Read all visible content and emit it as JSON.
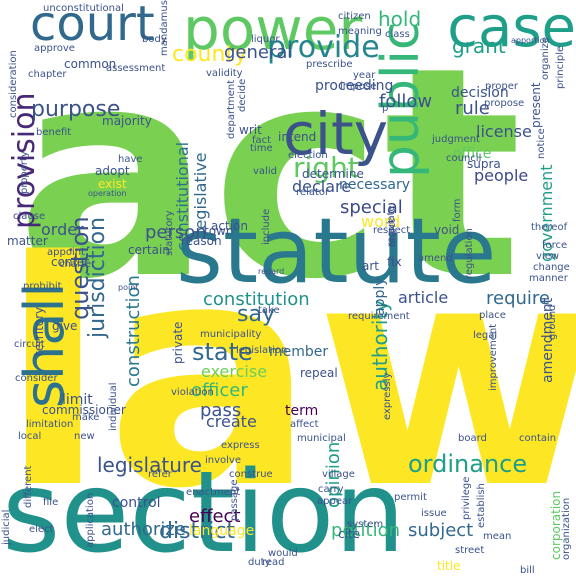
{
  "words": [
    {
      "text": "act",
      "color": "#7ad151"
    },
    {
      "text": "law",
      "color": "#fde725"
    },
    {
      "text": "section",
      "color": "#21918c"
    },
    {
      "text": "statute",
      "color": "#2a788e"
    },
    {
      "text": "power",
      "color": "#5ec962"
    },
    {
      "text": "court",
      "color": "#31688e"
    },
    {
      "text": "case",
      "color": "#1f9e89"
    },
    {
      "text": "city",
      "color": "#3b528b"
    },
    {
      "text": "shall",
      "color": "#2c728e"
    },
    {
      "text": "public",
      "color": "#35b779"
    },
    {
      "text": "provide",
      "color": "#25858e"
    },
    {
      "text": "provision",
      "color": "#482878"
    },
    {
      "text": "right",
      "color": "#5ec962"
    },
    {
      "text": "county",
      "color": "#fde725"
    },
    {
      "text": "hold",
      "color": "#35b779"
    },
    {
      "text": "general",
      "color": "#3b528b"
    },
    {
      "text": "grant",
      "color": "#1f9e89"
    },
    {
      "text": "purpose",
      "color": "#3b528b"
    },
    {
      "text": "constitutional",
      "color": "#2c728e"
    },
    {
      "text": "legislative",
      "color": "#31688e"
    },
    {
      "text": "question",
      "color": "#3b528b"
    },
    {
      "text": "jurisdiction",
      "color": "#31688e"
    },
    {
      "text": "state",
      "color": "#31688e"
    },
    {
      "text": "say",
      "color": "#31688e"
    },
    {
      "text": "ordinance",
      "color": "#1f9e89"
    },
    {
      "text": "authority",
      "color": "#1f9e89"
    },
    {
      "text": "legislature",
      "color": "#3b528b"
    },
    {
      "text": "district",
      "color": "#31688e"
    },
    {
      "text": "authorize",
      "color": "#31688e"
    },
    {
      "text": "petition",
      "color": "#35b779"
    },
    {
      "text": "subject",
      "color": "#31688e"
    },
    {
      "text": "constitution",
      "color": "#21918c"
    },
    {
      "text": "require",
      "color": "#31688e"
    },
    {
      "text": "article",
      "color": "#3b528b"
    },
    {
      "text": "apply",
      "color": "#31688e"
    },
    {
      "text": "member",
      "color": "#31688e"
    },
    {
      "text": "officer",
      "color": "#35b779"
    },
    {
      "text": "exercise",
      "color": "#6ece58"
    },
    {
      "text": "construction",
      "color": "#2a788e"
    },
    {
      "text": "person",
      "color": "#3b528b"
    },
    {
      "text": "effect",
      "color": "#440154"
    },
    {
      "text": "opinion",
      "color": "#1f9e89"
    },
    {
      "text": "government",
      "color": "#1f9e89"
    },
    {
      "text": "amendment",
      "color": "#3b528b"
    },
    {
      "text": "special",
      "color": "#3e4989"
    },
    {
      "text": "people",
      "color": "#3e4989"
    },
    {
      "text": "license",
      "color": "#3b528b"
    },
    {
      "text": "rule",
      "color": "#3b528b"
    },
    {
      "text": "follow",
      "color": "#3b528b"
    },
    {
      "text": "declare",
      "color": "#3b528b"
    },
    {
      "text": "necessary",
      "color": "#31688e"
    },
    {
      "text": "word",
      "color": "#fde725"
    },
    {
      "text": "order",
      "color": "#3b528b"
    },
    {
      "text": "pass",
      "color": "#3b528b"
    },
    {
      "text": "create",
      "color": "#3b528b"
    },
    {
      "text": "term",
      "color": "#440154"
    },
    {
      "text": "limit",
      "color": "#3b528b"
    },
    {
      "text": "reason",
      "color": "#3b528b"
    },
    {
      "text": "action",
      "color": "#3b528b"
    },
    {
      "text": "decision",
      "color": "#3b528b"
    },
    {
      "text": "proceeding",
      "color": "#3b528b"
    },
    {
      "text": "office",
      "color": "#5ec962"
    },
    {
      "text": "supra",
      "color": "#3b528b"
    },
    {
      "text": "determine",
      "color": "#3b528b"
    },
    {
      "text": "majority",
      "color": "#3b528b"
    },
    {
      "text": "adopt",
      "color": "#3b528b"
    },
    {
      "text": "exist",
      "color": "#fde725"
    },
    {
      "text": "town",
      "color": "#3b528b"
    },
    {
      "text": "intend",
      "color": "#3b528b"
    },
    {
      "text": "writ",
      "color": "#3b528b"
    },
    {
      "text": "election",
      "color": "#3b528b"
    },
    {
      "text": "certain",
      "color": "#3b528b"
    },
    {
      "text": "matter",
      "color": "#3b528b"
    },
    {
      "text": "confer",
      "color": "#3b528b"
    },
    {
      "text": "give",
      "color": "#3b528b"
    },
    {
      "text": "commissioner",
      "color": "#3b528b"
    },
    {
      "text": "territory",
      "color": "#3b528b"
    },
    {
      "text": "repeal",
      "color": "#3b528b"
    },
    {
      "text": "private",
      "color": "#3b528b"
    },
    {
      "text": "void",
      "color": "#3b528b"
    },
    {
      "text": "common",
      "color": "#3b528b"
    },
    {
      "text": "present",
      "color": "#3b528b"
    },
    {
      "text": "unconstitutional",
      "color": "#3b528b"
    },
    {
      "text": "consideration",
      "color": "#3b528b"
    },
    {
      "text": "approve",
      "color": "#3b528b"
    },
    {
      "text": "chapter",
      "color": "#3b528b"
    },
    {
      "text": "assessment",
      "color": "#3b528b"
    },
    {
      "text": "body",
      "color": "#3b528b"
    },
    {
      "text": "mandamus",
      "color": "#3b528b"
    },
    {
      "text": "liquor",
      "color": "#3b528b"
    },
    {
      "text": "citizen",
      "color": "#3b528b"
    },
    {
      "text": "meaning",
      "color": "#3b528b"
    },
    {
      "text": "class",
      "color": "#3b528b"
    },
    {
      "text": "apportion",
      "color": "#3b528b"
    },
    {
      "text": "organize",
      "color": "#3b528b"
    },
    {
      "text": "principle",
      "color": "#3b528b"
    },
    {
      "text": "benefit",
      "color": "#3b528b"
    },
    {
      "text": "property",
      "color": "#3b528b"
    },
    {
      "text": "clause",
      "color": "#3b528b"
    },
    {
      "text": "appoint",
      "color": "#3b528b"
    },
    {
      "text": "charter",
      "color": "#3b528b"
    },
    {
      "text": "prohibit",
      "color": "#3b528b"
    },
    {
      "text": "circuit",
      "color": "#3b528b"
    },
    {
      "text": "consider",
      "color": "#3b528b"
    },
    {
      "text": "limitation",
      "color": "#3b528b"
    },
    {
      "text": "judicial",
      "color": "#3b528b"
    },
    {
      "text": "local",
      "color": "#3b528b"
    },
    {
      "text": "different",
      "color": "#3b528b"
    },
    {
      "text": "elect",
      "color": "#3b528b"
    },
    {
      "text": "file",
      "color": "#3b528b"
    },
    {
      "text": "application",
      "color": "#3b528b"
    },
    {
      "text": "control",
      "color": "#3b528b"
    },
    {
      "text": "enactment",
      "color": "#3b528b"
    },
    {
      "text": "passage",
      "color": "#3b528b"
    },
    {
      "text": "appear",
      "color": "#3b528b"
    },
    {
      "text": "issue",
      "color": "#3b528b"
    },
    {
      "text": "system",
      "color": "#3b528b"
    },
    {
      "text": "duty",
      "color": "#3b528b"
    },
    {
      "text": "cite",
      "color": "#3b528b"
    },
    {
      "text": "street",
      "color": "#3b528b"
    },
    {
      "text": "title",
      "color": "#fde725"
    },
    {
      "text": "bill",
      "color": "#3b528b"
    },
    {
      "text": "would",
      "color": "#3b528b"
    },
    {
      "text": "read",
      "color": "#3b528b"
    },
    {
      "text": "village",
      "color": "#3b528b"
    },
    {
      "text": "construe",
      "color": "#3b528b"
    },
    {
      "text": "refer",
      "color": "#3b528b"
    },
    {
      "text": "involve",
      "color": "#3b528b"
    },
    {
      "text": "express",
      "color": "#3b528b"
    },
    {
      "text": "board",
      "color": "#3b528b"
    },
    {
      "text": "expressly",
      "color": "#3b528b"
    },
    {
      "text": "municipal",
      "color": "#3b528b"
    },
    {
      "text": "municipality",
      "color": "#3b528b"
    },
    {
      "text": "legislation",
      "color": "#3b528b"
    },
    {
      "text": "contain",
      "color": "#3b528b"
    },
    {
      "text": "place",
      "color": "#3b528b"
    },
    {
      "text": "legal",
      "color": "#3b528b"
    },
    {
      "text": "improvement",
      "color": "#3b528b"
    },
    {
      "text": "regulation",
      "color": "#3b528b"
    },
    {
      "text": "statutory",
      "color": "#3b528b"
    },
    {
      "text": "enact",
      "color": "#3b528b"
    },
    {
      "text": "fix",
      "color": "#3b528b"
    },
    {
      "text": "regulate",
      "color": "#3b528b"
    },
    {
      "text": "amend",
      "color": "#3b528b"
    },
    {
      "text": "respect",
      "color": "#3b528b"
    },
    {
      "text": "thereof",
      "color": "#3b528b"
    },
    {
      "text": "change",
      "color": "#3b528b"
    },
    {
      "text": "manner",
      "color": "#3b528b"
    },
    {
      "text": "force",
      "color": "#3b528b"
    },
    {
      "text": "view",
      "color": "#3b528b"
    },
    {
      "text": "form",
      "color": "#3b528b"
    },
    {
      "text": "council",
      "color": "#3b528b"
    },
    {
      "text": "notice",
      "color": "#3b528b"
    },
    {
      "text": "judgment",
      "color": "#3b528b"
    },
    {
      "text": "proper",
      "color": "#3b528b"
    },
    {
      "text": "propose",
      "color": "#3b528b"
    },
    {
      "text": "impose",
      "color": "#3b528b"
    },
    {
      "text": "year",
      "color": "#3b528b"
    },
    {
      "text": "prescribe",
      "color": "#3b528b"
    },
    {
      "text": "validity",
      "color": "#3b528b"
    },
    {
      "text": "decide",
      "color": "#3b528b"
    },
    {
      "text": "department",
      "color": "#3b528b"
    },
    {
      "text": "time",
      "color": "#3b528b"
    },
    {
      "text": "fact",
      "color": "#3b528b"
    },
    {
      "text": "valid",
      "color": "#3b528b"
    },
    {
      "text": "relator",
      "color": "#3b528b"
    },
    {
      "text": "operation",
      "color": "#3b528b"
    },
    {
      "text": "have",
      "color": "#3b528b"
    },
    {
      "text": "include",
      "color": "#3b528b"
    },
    {
      "text": "individual",
      "color": "#3b528b"
    },
    {
      "text": "violation",
      "color": "#3b528b"
    },
    {
      "text": "affect",
      "color": "#3b528b"
    },
    {
      "text": "make",
      "color": "#3b528b"
    },
    {
      "text": "new",
      "color": "#3b528b"
    },
    {
      "text": "permit",
      "color": "#3b528b"
    },
    {
      "text": "establish",
      "color": "#3b528b"
    },
    {
      "text": "mean",
      "color": "#3b528b"
    },
    {
      "text": "privilege",
      "color": "#3b528b"
    },
    {
      "text": "corporation",
      "color": "#5ec962"
    },
    {
      "text": "organization",
      "color": "#3b528b"
    },
    {
      "text": "ground",
      "color": "#3b528b"
    },
    {
      "text": "requirement",
      "color": "#3b528b"
    },
    {
      "text": "carry",
      "color": "#3b528b"
    },
    {
      "text": "language",
      "color": "#fde725"
    },
    {
      "text": "art",
      "color": "#3b528b"
    },
    {
      "text": "point",
      "color": "#3b528b"
    },
    {
      "text": "regard",
      "color": "#3b528b"
    },
    {
      "text": "take",
      "color": "#3b528b"
    },
    {
      "text": "p",
      "color": "#3b528b"
    }
  ]
}
